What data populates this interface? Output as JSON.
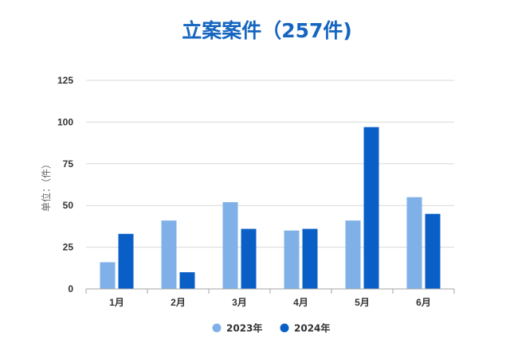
{
  "chart_data": {
    "type": "bar",
    "title": "立案案件（257件)",
    "ylabel": "单位：（件）",
    "xlabel": "",
    "categories": [
      "1月",
      "2月",
      "3月",
      "4月",
      "5月",
      "6月"
    ],
    "series": [
      {
        "name": "2023年",
        "values": [
          16,
          41,
          52,
          35,
          41,
          55
        ]
      },
      {
        "name": "2024年",
        "values": [
          33,
          10,
          36,
          36,
          97,
          45
        ]
      }
    ],
    "ylim": [
      0,
      125
    ],
    "yticks": [
      0,
      25,
      50,
      75,
      100,
      125
    ],
    "grid": true,
    "legend": "bottom-center"
  },
  "colors": {
    "title": "#1565c0",
    "series_2023": "#7fb1e8",
    "series_2024": "#0a5fc7",
    "grid": "#d9d9d9",
    "axis": "#a6a6a6"
  }
}
